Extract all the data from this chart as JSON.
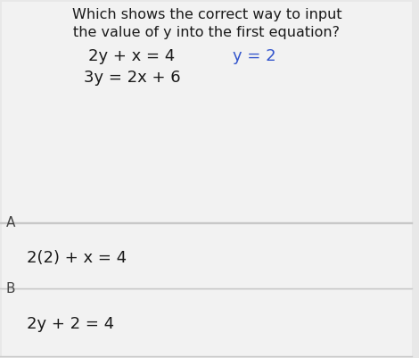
{
  "title_line1": "Which shows the correct way to input",
  "title_line2": "the value of y into the first equation?",
  "eq1_part1": "2y + x = 4",
  "eq1_part2": "y = 2",
  "eq2": "3y = 2x + 6",
  "label_A": "A",
  "answer_A": "2(2) + x = 4",
  "label_B": "B",
  "answer_B": "2y + 2 = 4",
  "bg_color": "#e8e8e8",
  "card_color": "#f2f2f2",
  "divider_color": "#c8c8c8",
  "text_color": "#1a1a1a",
  "blue_color": "#3355cc",
  "label_color": "#444444",
  "title_fontsize": 11.5,
  "eq_fontsize": 13,
  "answer_fontsize": 13,
  "label_fontsize": 11
}
